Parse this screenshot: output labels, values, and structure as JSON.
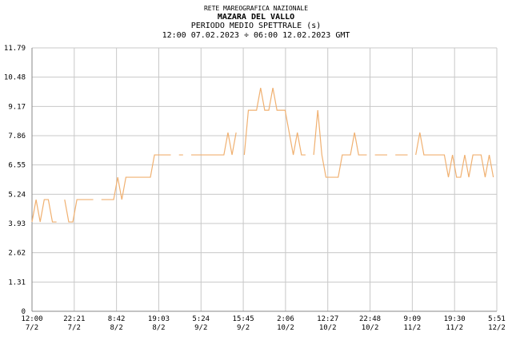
{
  "chart_data": {
    "type": "line",
    "supertitle": "RETE MAREOGRAFICA NAZIONALE",
    "title": "MAZARA DEL VALLO",
    "subtitle": "PERIODO MEDIO SPETTRALE (s)",
    "period": "12:00 07.02.2023 ÷ 06:00 12.02.2023 GMT",
    "x": [
      0,
      1,
      2,
      3,
      4,
      5,
      6,
      7,
      8,
      9,
      10,
      11,
      12,
      13,
      14,
      15,
      16,
      17,
      18,
      19,
      20,
      21,
      22,
      23,
      24,
      25,
      26,
      27,
      28,
      29,
      30,
      31,
      32,
      33,
      34,
      35,
      36,
      37,
      38,
      39,
      40,
      41,
      42,
      43,
      44,
      45,
      46,
      47,
      48,
      49,
      50,
      51,
      52,
      53,
      54,
      55,
      56,
      57,
      58,
      59,
      60,
      61,
      62,
      63,
      64,
      65,
      66,
      67,
      68,
      69,
      70,
      71,
      72,
      73,
      74,
      75,
      76,
      77,
      78,
      79,
      80,
      81,
      82,
      83,
      84,
      85,
      86,
      87,
      88,
      89,
      90,
      91,
      92,
      93,
      94,
      95,
      96,
      97,
      98,
      99,
      100,
      101,
      102,
      103,
      104,
      105,
      106,
      107,
      108,
      109,
      110,
      111,
      112,
      113
    ],
    "series": [
      {
        "color": "#f0b070",
        "values": [
          4,
          5,
          4,
          5,
          5,
          4,
          4,
          null,
          5,
          4,
          4,
          5,
          5,
          5,
          5,
          5,
          null,
          5,
          5,
          5,
          5,
          6,
          5,
          6,
          6,
          6,
          6,
          6,
          6,
          6,
          7,
          7,
          7,
          7,
          7,
          null,
          7,
          7,
          null,
          7,
          7,
          7,
          7,
          7,
          7,
          7,
          7,
          7,
          8,
          7,
          8,
          null,
          7,
          9,
          9,
          9,
          10,
          9,
          9,
          10,
          9,
          9,
          9,
          8,
          7,
          8,
          7,
          7,
          null,
          7,
          9,
          7,
          6,
          6,
          6,
          6,
          7,
          7,
          7,
          8,
          7,
          7,
          7,
          null,
          7,
          7,
          7,
          7,
          null,
          7,
          7,
          7,
          7,
          null,
          7,
          8,
          7,
          7,
          7,
          7,
          7,
          7,
          6,
          7,
          6,
          6,
          7,
          6,
          7,
          7,
          7,
          6,
          7,
          6
        ]
      }
    ],
    "xlim": [
      0,
      113.85
    ],
    "xticks": [
      {
        "value": 0,
        "label": "12:00"
      },
      {
        "value": 10.35,
        "label": "22:21"
      },
      {
        "value": 20.7,
        "label": "8:42"
      },
      {
        "value": 31.05,
        "label": "19:03"
      },
      {
        "value": 41.4,
        "label": "5:24"
      },
      {
        "value": 51.75,
        "label": "15:45"
      },
      {
        "value": 62.1,
        "label": "2:06"
      },
      {
        "value": 72.45,
        "label": "12:27"
      },
      {
        "value": 82.8,
        "label": "22:48"
      },
      {
        "value": 93.15,
        "label": "9:09"
      },
      {
        "value": 103.5,
        "label": "19:30"
      },
      {
        "value": 113.85,
        "label": "5:51"
      }
    ],
    "xtick_dates": [
      "7/2",
      "7/2",
      "8/2",
      "8/2",
      "9/2",
      "9/2",
      "10/2",
      "10/2",
      "10/2",
      "11/2",
      "11/2",
      "12/2"
    ],
    "ylim": [
      0,
      11.79
    ],
    "yticks": [
      0,
      1.31,
      2.62,
      3.93,
      5.24,
      6.55,
      7.86,
      9.17,
      10.48,
      11.79
    ],
    "grid": true
  }
}
